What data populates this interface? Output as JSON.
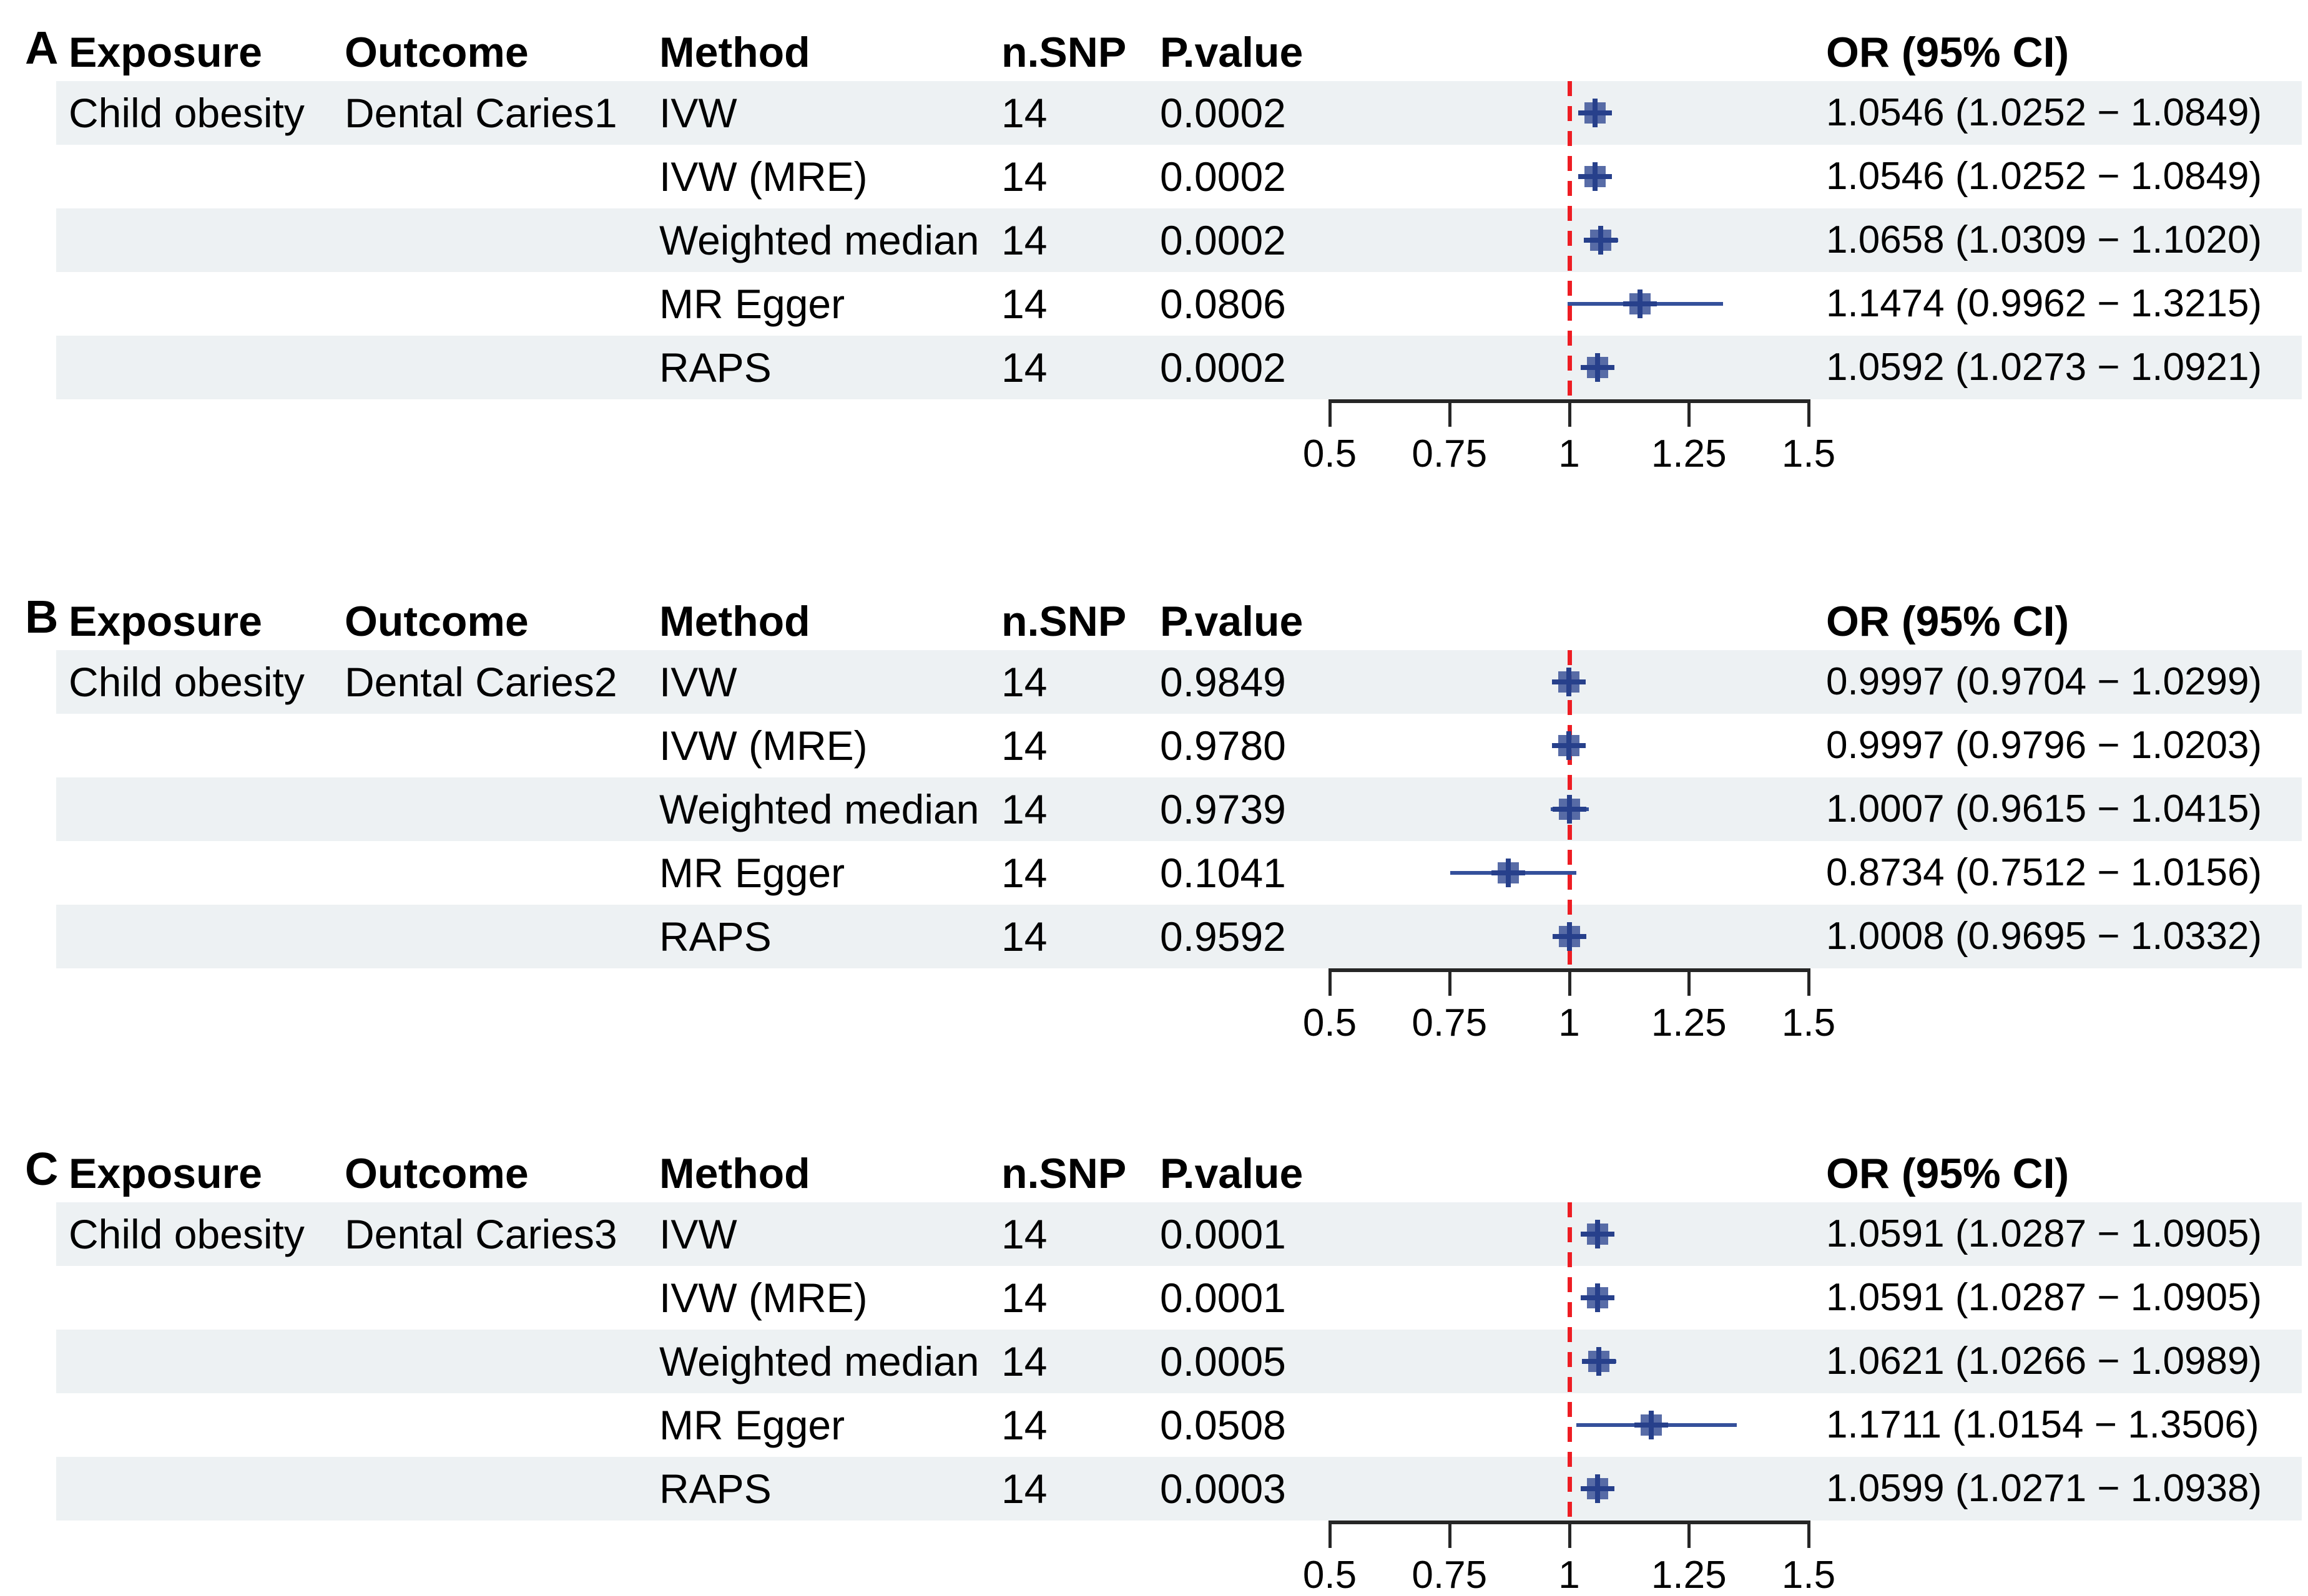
{
  "figure": {
    "columns": {
      "exposure": "Exposure",
      "outcome": "Outcome",
      "method": "Method",
      "nsnp": "n.SNP",
      "pvalue": "P.value",
      "or_ci": "OR (95% CI)"
    },
    "axis_ticks": [
      "0.5",
      "0.75",
      "1",
      "1.25",
      "1.5"
    ],
    "colors": {
      "stripe": "#edf1f3",
      "marker_fill": "#4a5f9f",
      "marker_cross": "#27408b",
      "ci_line": "#34509b",
      "reference_line": "#ee1d23",
      "axis": "#262626",
      "text": "#000000"
    }
  },
  "chart_data": [
    {
      "type": "scatter",
      "subtype": "forest",
      "panel": "A",
      "exposure": "Child obesity",
      "outcome": "Dental Caries1",
      "xlim": [
        0.5,
        1.5
      ],
      "ref_line": 1,
      "tick_values": [
        0.5,
        0.75,
        1,
        1.25,
        1.5
      ],
      "rows": [
        {
          "method": "IVW",
          "nsnp": "14",
          "pvalue": "0.0002",
          "or": 1.0546,
          "ci_low": 1.0252,
          "ci_high": 1.0849,
          "or_label": "1.0546 (1.0252 − 1.0849)"
        },
        {
          "method": "IVW (MRE)",
          "nsnp": "14",
          "pvalue": "0.0002",
          "or": 1.0546,
          "ci_low": 1.0252,
          "ci_high": 1.0849,
          "or_label": "1.0546 (1.0252 − 1.0849)"
        },
        {
          "method": "Weighted median",
          "nsnp": "14",
          "pvalue": "0.0002",
          "or": 1.0658,
          "ci_low": 1.0309,
          "ci_high": 1.102,
          "or_label": "1.0658 (1.0309 − 1.1020)"
        },
        {
          "method": "MR Egger",
          "nsnp": "14",
          "pvalue": "0.0806",
          "or": 1.1474,
          "ci_low": 0.9962,
          "ci_high": 1.3215,
          "or_label": "1.1474 (0.9962 − 1.3215)"
        },
        {
          "method": "RAPS",
          "nsnp": "14",
          "pvalue": "0.0002",
          "or": 1.0592,
          "ci_low": 1.0273,
          "ci_high": 1.0921,
          "or_label": "1.0592 (1.0273 − 1.0921)"
        }
      ]
    },
    {
      "type": "scatter",
      "subtype": "forest",
      "panel": "B",
      "exposure": "Child obesity",
      "outcome": "Dental Caries2",
      "xlim": [
        0.5,
        1.5
      ],
      "ref_line": 1,
      "tick_values": [
        0.5,
        0.75,
        1,
        1.25,
        1.5
      ],
      "rows": [
        {
          "method": "IVW",
          "nsnp": "14",
          "pvalue": "0.9849",
          "or": 0.9997,
          "ci_low": 0.9704,
          "ci_high": 1.0299,
          "or_label": "0.9997 (0.9704 − 1.0299)"
        },
        {
          "method": "IVW (MRE)",
          "nsnp": "14",
          "pvalue": "0.9780",
          "or": 0.9997,
          "ci_low": 0.9796,
          "ci_high": 1.0203,
          "or_label": "0.9997 (0.9796 − 1.0203)"
        },
        {
          "method": "Weighted median",
          "nsnp": "14",
          "pvalue": "0.9739",
          "or": 1.0007,
          "ci_low": 0.9615,
          "ci_high": 1.0415,
          "or_label": "1.0007 (0.9615 − 1.0415)"
        },
        {
          "method": "MR Egger",
          "nsnp": "14",
          "pvalue": "0.1041",
          "or": 0.8734,
          "ci_low": 0.7512,
          "ci_high": 1.0156,
          "or_label": "0.8734 (0.7512 − 1.0156)"
        },
        {
          "method": "RAPS",
          "nsnp": "14",
          "pvalue": "0.9592",
          "or": 1.0008,
          "ci_low": 0.9695,
          "ci_high": 1.0332,
          "or_label": "1.0008 (0.9695 − 1.0332)"
        }
      ]
    },
    {
      "type": "scatter",
      "subtype": "forest",
      "panel": "C",
      "exposure": "Child obesity",
      "outcome": "Dental Caries3",
      "xlim": [
        0.5,
        1.5
      ],
      "ref_line": 1,
      "tick_values": [
        0.5,
        0.75,
        1,
        1.25,
        1.5
      ],
      "rows": [
        {
          "method": "IVW",
          "nsnp": "14",
          "pvalue": "0.0001",
          "or": 1.0591,
          "ci_low": 1.0287,
          "ci_high": 1.0905,
          "or_label": "1.0591 (1.0287 − 1.0905)"
        },
        {
          "method": "IVW (MRE)",
          "nsnp": "14",
          "pvalue": "0.0001",
          "or": 1.0591,
          "ci_low": 1.0287,
          "ci_high": 1.0905,
          "or_label": "1.0591 (1.0287 − 1.0905)"
        },
        {
          "method": "Weighted median",
          "nsnp": "14",
          "pvalue": "0.0005",
          "or": 1.0621,
          "ci_low": 1.0266,
          "ci_high": 1.0989,
          "or_label": "1.0621 (1.0266 − 1.0989)"
        },
        {
          "method": "MR Egger",
          "nsnp": "14",
          "pvalue": "0.0508",
          "or": 1.1711,
          "ci_low": 1.0154,
          "ci_high": 1.3506,
          "or_label": "1.1711 (1.0154 − 1.3506)"
        },
        {
          "method": "RAPS",
          "nsnp": "14",
          "pvalue": "0.0003",
          "or": 1.0599,
          "ci_low": 1.0271,
          "ci_high": 1.0938,
          "or_label": "1.0599 (1.0271 − 1.0938)"
        }
      ]
    }
  ]
}
